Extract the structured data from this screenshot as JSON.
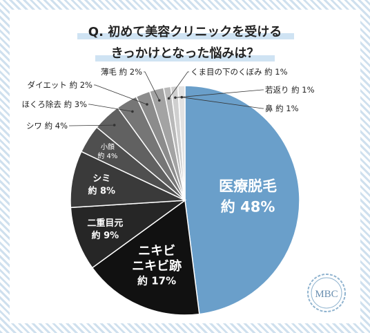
{
  "chart_data": {
    "type": "pie",
    "title_lines": [
      "Q. 初めて美容クリニックを受ける",
      "きっかけとなった悩みは？"
    ],
    "slices": [
      {
        "label": "医療脱毛",
        "value_text": "約 48%",
        "value": 48,
        "color": "#6a9fca"
      },
      {
        "label": "ニキビ ニキビ跡",
        "value_text": "約 17%",
        "value": 17,
        "color": "#111111"
      },
      {
        "label": "二重目元",
        "value_text": "約 9%",
        "value": 9,
        "color": "#262626"
      },
      {
        "label": "シミ",
        "value_text": "約 8%",
        "value": 8,
        "color": "#3a3a3a"
      },
      {
        "label": "小顔",
        "value_text": "約 4%",
        "value": 4,
        "color": "#4f4f4f"
      },
      {
        "label": "シワ",
        "value_text": "約 4%",
        "value": 4,
        "color": "#616161"
      },
      {
        "label": "ほくろ除去",
        "value_text": "約 3%",
        "value": 3,
        "color": "#767676"
      },
      {
        "label": "ダイエット",
        "value_text": "約 2%",
        "value": 2,
        "color": "#8c8c8c"
      },
      {
        "label": "薄毛",
        "value_text": "約 2%",
        "value": 2,
        "color": "#a3a3a3"
      },
      {
        "label": "くま目の下のくぼみ",
        "value_text": "約 1%",
        "value": 1,
        "color": "#b9b9b9"
      },
      {
        "label": "若返り",
        "value_text": "約 1%",
        "value": 1,
        "color": "#cfcfcf"
      },
      {
        "label": "鼻",
        "value_text": "約 1%",
        "value": 1,
        "color": "#e2e2e2"
      }
    ]
  },
  "logo": {
    "text": "MBC"
  },
  "colors": {
    "title_underline": "#cfe3f3",
    "leader": "#333333",
    "accent": "#6a9fca"
  }
}
